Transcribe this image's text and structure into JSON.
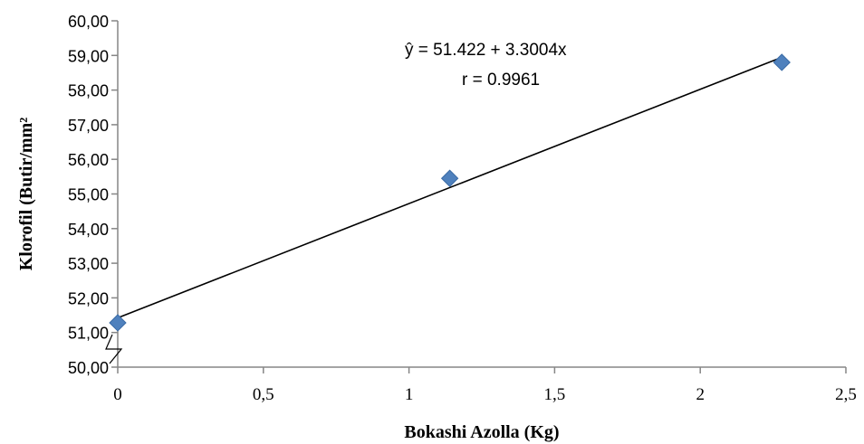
{
  "chart_data": {
    "type": "scatter",
    "title": "",
    "xlabel": "Bokashi Azolla (Kg)",
    "ylabel": "Klorofil (Butir/mm²",
    "xlim": [
      0,
      2.5
    ],
    "ylim": [
      50,
      60
    ],
    "x_ticks": [
      0,
      0.5,
      1,
      1.5,
      2,
      2.5
    ],
    "x_tick_labels": [
      "0",
      "0,5",
      "1",
      "1,5",
      "2",
      "2,5"
    ],
    "y_ticks": [
      50,
      51,
      52,
      53,
      54,
      55,
      56,
      57,
      58,
      59,
      60
    ],
    "y_tick_labels": [
      "50,00",
      "51,00",
      "52,00",
      "53,00",
      "54,00",
      "55,00",
      "56,00",
      "57,00",
      "58,00",
      "59,00",
      "60,00"
    ],
    "y_axis_break": true,
    "grid": false,
    "marker": "diamond",
    "marker_color": "#4F81BD",
    "series": [
      {
        "x": [
          0,
          1.14,
          2.28
        ],
        "y": [
          51.28,
          55.45,
          58.8
        ]
      }
    ],
    "trendline": {
      "intercept": 51.422,
      "slope": 3.3004,
      "x_range": [
        0,
        2.28
      ],
      "equation_text": "ŷ  = 51.422 + 3.3004x",
      "r_text": "r = 0.9961"
    }
  }
}
